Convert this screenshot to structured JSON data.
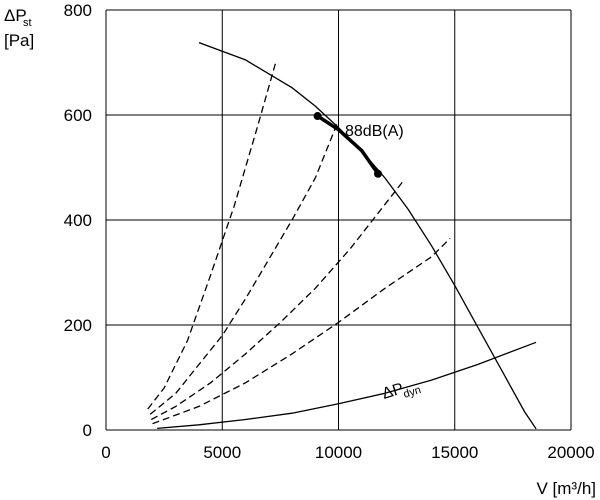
{
  "chart_data": {
    "type": "line",
    "ylabel_line1": "ΔP",
    "ylabel_sub": "st",
    "ylabel_line2": "[Pa]",
    "xlabel": "V [m³/h]",
    "xlim": [
      0,
      20000
    ],
    "ylim": [
      0,
      800
    ],
    "x_ticks": [
      0,
      5000,
      10000,
      15000,
      20000
    ],
    "y_ticks": [
      0,
      200,
      400,
      600,
      800
    ],
    "x_tick_labels": [
      "0",
      "5000",
      "10000",
      "15000",
      "20000"
    ],
    "y_tick_labels": [
      "0",
      "200",
      "400",
      "600",
      "800"
    ],
    "grid": true,
    "fan_curve": {
      "x": [
        4000,
        6000,
        8000,
        9000,
        10000,
        11000,
        12000,
        13000,
        14000,
        15000,
        16000,
        17000,
        18000,
        18500
      ],
      "y": [
        738,
        705,
        652,
        617,
        576,
        531,
        480,
        420,
        351,
        275,
        195,
        115,
        35,
        2
      ]
    },
    "operating_segment": {
      "x": [
        9100,
        10000,
        11000,
        11700
      ],
      "y": [
        598,
        572,
        532,
        488
      ]
    },
    "operating_points": [
      {
        "x": 9100,
        "y": 598
      },
      {
        "x": 11700,
        "y": 488
      }
    ],
    "operating_label": "88dB(A)",
    "system_curves": [
      {
        "x": [
          1800,
          2500,
          3500,
          4500,
          5500,
          6500,
          7300
        ],
        "y": [
          40,
          80,
          170,
          295,
          425,
          575,
          700
        ]
      },
      {
        "x": [
          1900,
          3000,
          4000,
          5000,
          6000,
          7000,
          8000,
          9000,
          10000
        ],
        "y": [
          30,
          70,
          125,
          180,
          250,
          325,
          400,
          480,
          590
        ]
      },
      {
        "x": [
          1950,
          3000,
          4500,
          6000,
          7500,
          9000,
          10500,
          12000,
          12800
        ],
        "y": [
          20,
          45,
          90,
          145,
          205,
          270,
          345,
          430,
          475
        ]
      },
      {
        "x": [
          2000,
          4000,
          6000,
          8000,
          10000,
          12000,
          14000,
          14800
        ],
        "y": [
          12,
          45,
          90,
          145,
          205,
          270,
          330,
          365
        ]
      }
    ],
    "dynamic_curve": {
      "name": "ΔP",
      "name_sub": "dyn",
      "x": [
        2200,
        4000,
        6000,
        8000,
        10000,
        12000,
        14000,
        16000,
        18500
      ],
      "y": [
        3,
        10,
        20,
        32,
        50,
        70,
        95,
        125,
        167
      ]
    }
  }
}
